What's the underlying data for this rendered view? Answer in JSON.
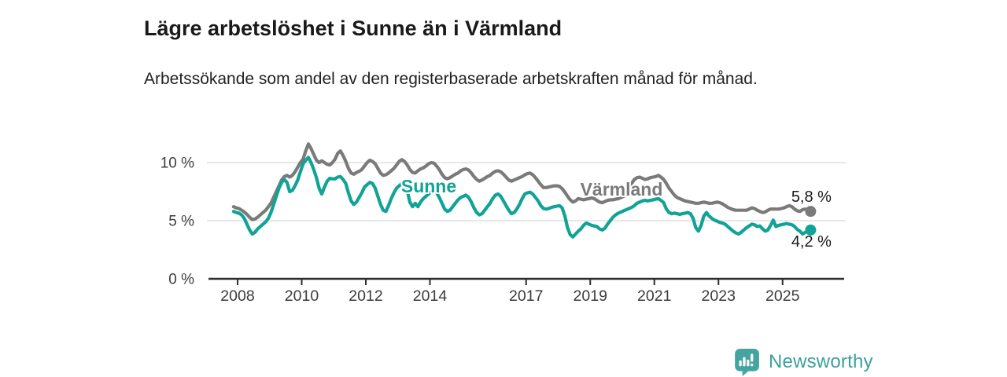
{
  "header": {
    "title": "Lägre arbetslöshet i Sunne än i Värmland",
    "subtitle": "Arbetssökande som andel av den registerbaserade arbetskraften månad för månad."
  },
  "footer": {
    "brand": "Newsworthy",
    "brand_color": "#3ba19b",
    "logo_icon": "bar-chart-speech-bubble"
  },
  "chart_data": {
    "type": "line",
    "title": "Lägre arbetslöshet i Sunne än i Värmland",
    "x_unit": "year, monthly resolution",
    "y_unit": "percent",
    "ylim": [
      0,
      12
    ],
    "grid": "horizontal",
    "yticks": [
      {
        "value": 10,
        "label": "10 %"
      },
      {
        "value": 5,
        "label": "5 %"
      },
      {
        "value": 0,
        "label": "0 %"
      }
    ],
    "xticks": [
      {
        "value": 2008,
        "label": "2008"
      },
      {
        "value": 2010,
        "label": "2010"
      },
      {
        "value": 2012,
        "label": "2012"
      },
      {
        "value": 2014,
        "label": "2014"
      },
      {
        "value": 2017,
        "label": "2017"
      },
      {
        "value": 2019,
        "label": "2019"
      },
      {
        "value": 2021,
        "label": "2021"
      },
      {
        "value": 2023,
        "label": "2023"
      },
      {
        "value": 2025,
        "label": "2025"
      }
    ],
    "series": [
      {
        "name": "Värmland",
        "color": "#7a7a7a",
        "end_label": "5,8 %",
        "end_value": 5.8,
        "start_year": 2007.875,
        "step_years": 0.0833333,
        "values": [
          6.2,
          6.1,
          6.05,
          5.9,
          5.75,
          5.55,
          5.3,
          5.1,
          5.15,
          5.3,
          5.5,
          5.7,
          5.9,
          6.2,
          6.5,
          7.0,
          7.5,
          8.0,
          8.5,
          8.8,
          8.9,
          8.75,
          8.9,
          9.2,
          9.6,
          10.0,
          10.3,
          11.0,
          11.6,
          11.2,
          10.7,
          10.2,
          10.0,
          10.15,
          10.0,
          9.85,
          9.8,
          10.0,
          10.3,
          10.8,
          11.0,
          10.6,
          10.1,
          9.5,
          9.1,
          9.0,
          9.15,
          9.25,
          9.4,
          9.7,
          10.0,
          10.2,
          10.1,
          9.9,
          9.5,
          9.1,
          8.9,
          8.95,
          9.1,
          9.3,
          9.5,
          9.8,
          10.1,
          10.25,
          10.1,
          9.8,
          9.4,
          9.15,
          9.1,
          9.3,
          9.45,
          9.55,
          9.7,
          9.9,
          10.0,
          9.95,
          9.7,
          9.4,
          9.0,
          8.7,
          8.6,
          8.7,
          8.85,
          9.0,
          9.1,
          9.3,
          9.4,
          9.45,
          9.35,
          9.1,
          8.8,
          8.55,
          8.4,
          8.5,
          8.65,
          8.8,
          8.9,
          9.1,
          9.25,
          9.3,
          9.2,
          9.0,
          8.75,
          8.5,
          8.4,
          8.5,
          8.6,
          8.7,
          8.8,
          8.95,
          9.05,
          9.1,
          8.95,
          8.7,
          8.4,
          8.1,
          7.85,
          7.85,
          7.9,
          7.95,
          8.0,
          8.0,
          7.95,
          7.75,
          7.45,
          7.1,
          6.8,
          6.6,
          6.7,
          6.9,
          6.85,
          6.8,
          6.85,
          6.9,
          6.95,
          6.9,
          6.75,
          6.6,
          6.55,
          6.65,
          6.75,
          6.8,
          6.8,
          6.85,
          6.9,
          7.0,
          7.1,
          7.25,
          7.6,
          8.2,
          8.55,
          8.7,
          8.75,
          8.65,
          8.55,
          8.6,
          8.7,
          8.75,
          8.8,
          8.9,
          8.75,
          8.55,
          8.2,
          7.8,
          7.5,
          7.2,
          7.0,
          6.9,
          6.8,
          6.7,
          6.65,
          6.6,
          6.55,
          6.5,
          6.5,
          6.55,
          6.6,
          6.55,
          6.5,
          6.5,
          6.55,
          6.6,
          6.55,
          6.45,
          6.3,
          6.15,
          6.05,
          5.95,
          5.9,
          5.9,
          5.9,
          5.9,
          5.9,
          6.0,
          6.1,
          6.05,
          5.9,
          5.8,
          5.7,
          5.75,
          5.9,
          6.0,
          6.0,
          6.0,
          6.0,
          6.05,
          6.1,
          6.2,
          6.3,
          6.2,
          6.0,
          5.85,
          5.8,
          5.95,
          6.0,
          5.9,
          5.8
        ]
      },
      {
        "name": "Sunne",
        "color": "#10a396",
        "end_label": "4,2 %",
        "end_value": 4.2,
        "start_year": 2007.875,
        "step_years": 0.0833333,
        "values": [
          5.8,
          5.7,
          5.65,
          5.5,
          5.2,
          4.7,
          4.2,
          3.85,
          4.0,
          4.3,
          4.5,
          4.7,
          4.9,
          5.2,
          5.7,
          6.4,
          7.1,
          7.8,
          8.3,
          8.55,
          8.3,
          7.5,
          7.6,
          8.0,
          8.5,
          9.2,
          9.9,
          10.2,
          10.45,
          10.0,
          9.4,
          8.7,
          7.8,
          7.3,
          7.9,
          8.4,
          8.65,
          8.6,
          8.6,
          8.75,
          8.8,
          8.55,
          8.2,
          7.4,
          6.7,
          6.4,
          6.6,
          7.0,
          7.4,
          7.9,
          8.1,
          8.3,
          8.2,
          7.8,
          7.1,
          6.4,
          5.9,
          5.8,
          6.3,
          6.9,
          7.4,
          7.8,
          8.0,
          8.2,
          8.0,
          7.6,
          6.6,
          6.2,
          6.5,
          6.2,
          6.6,
          6.9,
          7.1,
          7.3,
          7.5,
          7.6,
          7.4,
          7.0,
          6.5,
          6.0,
          5.8,
          5.9,
          6.2,
          6.5,
          6.8,
          7.0,
          7.1,
          7.2,
          7.0,
          6.6,
          6.1,
          5.7,
          5.5,
          5.6,
          5.9,
          6.2,
          6.5,
          6.9,
          7.2,
          7.3,
          7.1,
          6.7,
          6.3,
          5.9,
          5.6,
          5.7,
          6.0,
          6.4,
          6.9,
          7.3,
          7.4,
          7.45,
          7.3,
          7.0,
          6.7,
          6.3,
          6.05,
          6.0,
          6.05,
          6.15,
          6.2,
          6.25,
          6.3,
          6.1,
          5.4,
          4.4,
          3.8,
          3.6,
          3.85,
          4.1,
          4.3,
          4.6,
          4.8,
          4.7,
          4.6,
          4.55,
          4.5,
          4.3,
          4.2,
          4.35,
          4.7,
          5.0,
          5.3,
          5.5,
          5.65,
          5.75,
          5.85,
          5.95,
          6.05,
          6.15,
          6.3,
          6.5,
          6.6,
          6.7,
          6.75,
          6.7,
          6.75,
          6.8,
          6.85,
          6.9,
          6.75,
          6.55,
          6.0,
          5.7,
          5.6,
          5.65,
          5.6,
          5.55,
          5.6,
          5.65,
          5.7,
          5.6,
          5.2,
          4.4,
          4.1,
          4.6,
          5.4,
          5.7,
          5.4,
          5.2,
          5.05,
          4.95,
          4.85,
          4.8,
          4.7,
          4.5,
          4.3,
          4.1,
          3.95,
          3.85,
          4.0,
          4.2,
          4.4,
          4.55,
          4.7,
          4.65,
          4.5,
          4.55,
          4.3,
          4.1,
          4.2,
          4.6,
          5.05,
          4.5,
          4.6,
          4.65,
          4.7,
          4.75,
          4.7,
          4.65,
          4.5,
          4.25,
          4.1,
          3.85,
          4.0,
          4.1,
          4.2
        ]
      }
    ]
  }
}
